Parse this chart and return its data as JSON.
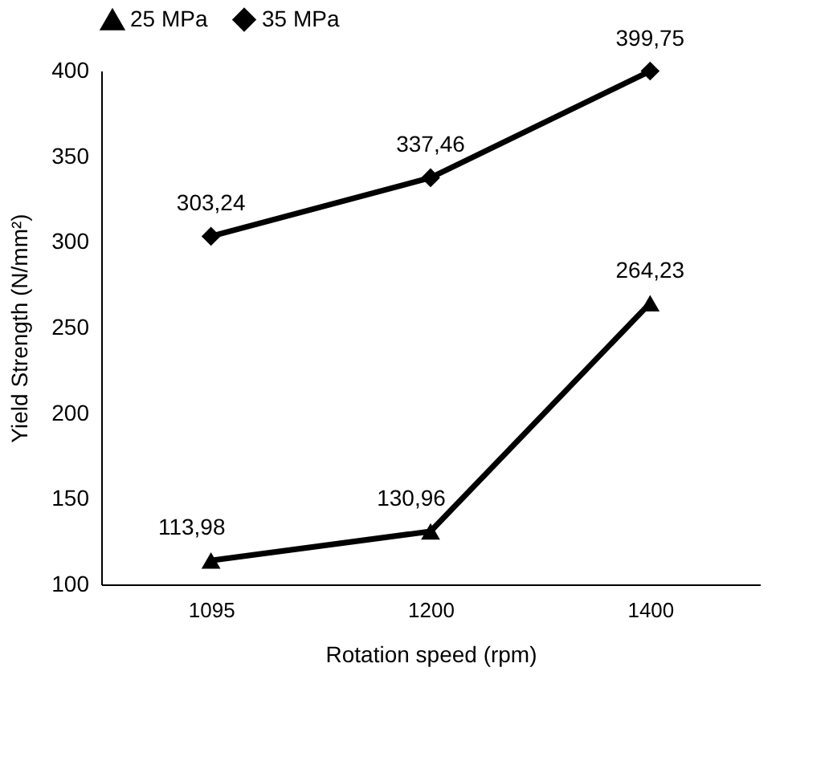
{
  "chart_data": {
    "type": "line",
    "xlabel": "Rotation speed (rpm)",
    "ylabel": "Yield Strength (N/mm²)",
    "categories": [
      "1095",
      "1200",
      "1400"
    ],
    "series": [
      {
        "name": "25 MPa",
        "color": "#000000",
        "marker": "triangle",
        "values": [
          113.98,
          130.96,
          264.23
        ],
        "value_labels": [
          "113,98",
          "130,96",
          "264,23"
        ]
      },
      {
        "name": "35 MPa",
        "color": "#000000",
        "marker": "diamond",
        "values": [
          303.24,
          337.46,
          399.75
        ],
        "value_labels": [
          "303,24",
          "337,46",
          "399,75"
        ]
      }
    ],
    "ylim": [
      100,
      400
    ],
    "yticks": [
      100,
      150,
      200,
      250,
      300,
      350,
      400
    ],
    "grid": false,
    "legend": "top",
    "line_style": "solid"
  }
}
